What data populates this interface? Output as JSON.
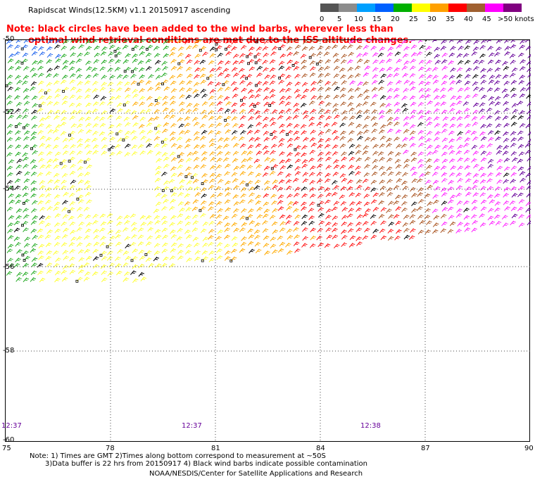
{
  "header": {
    "title": "Rapidscat Winds(12.5KM) v1.1 20150917 ascending",
    "note_line1": "Note: black circles have been added to the wind barbs, wherever less than",
    "note_line2": "optimal wind retrieval conditions are met due to the ISS altitude changes."
  },
  "colorbar": {
    "ticks": [
      "0",
      "5",
      "10",
      "15",
      "20",
      "25",
      "30",
      "35",
      "40",
      "45",
      ">50 knots"
    ],
    "colors": [
      "#555555",
      "#8c8c8c",
      "#00a0ff",
      "#0060ff",
      "#00b000",
      "#ffff00",
      "#ffa000",
      "#ff0000",
      "#a06030",
      "#ff00ff",
      "#800080"
    ]
  },
  "map": {
    "x_ticks": [
      "75",
      "78",
      "81",
      "84",
      "87",
      "90"
    ],
    "y_ticks": [
      "-50",
      "-52",
      "-54",
      "-56",
      "-58",
      "-60"
    ],
    "pass_times": [
      "12:37",
      "12:37",
      "12:38"
    ]
  },
  "footer": {
    "line1": "Note: 1) Times are GMT 2)Times along bottom correspond to measurement at ~50S",
    "line2": "3)Data buffer is 22 hrs from 20150917 4) Black wind barbs indicate possible contamination",
    "credit": "NOAA/NESDIS/Center for Satellite Applications and Research"
  }
}
